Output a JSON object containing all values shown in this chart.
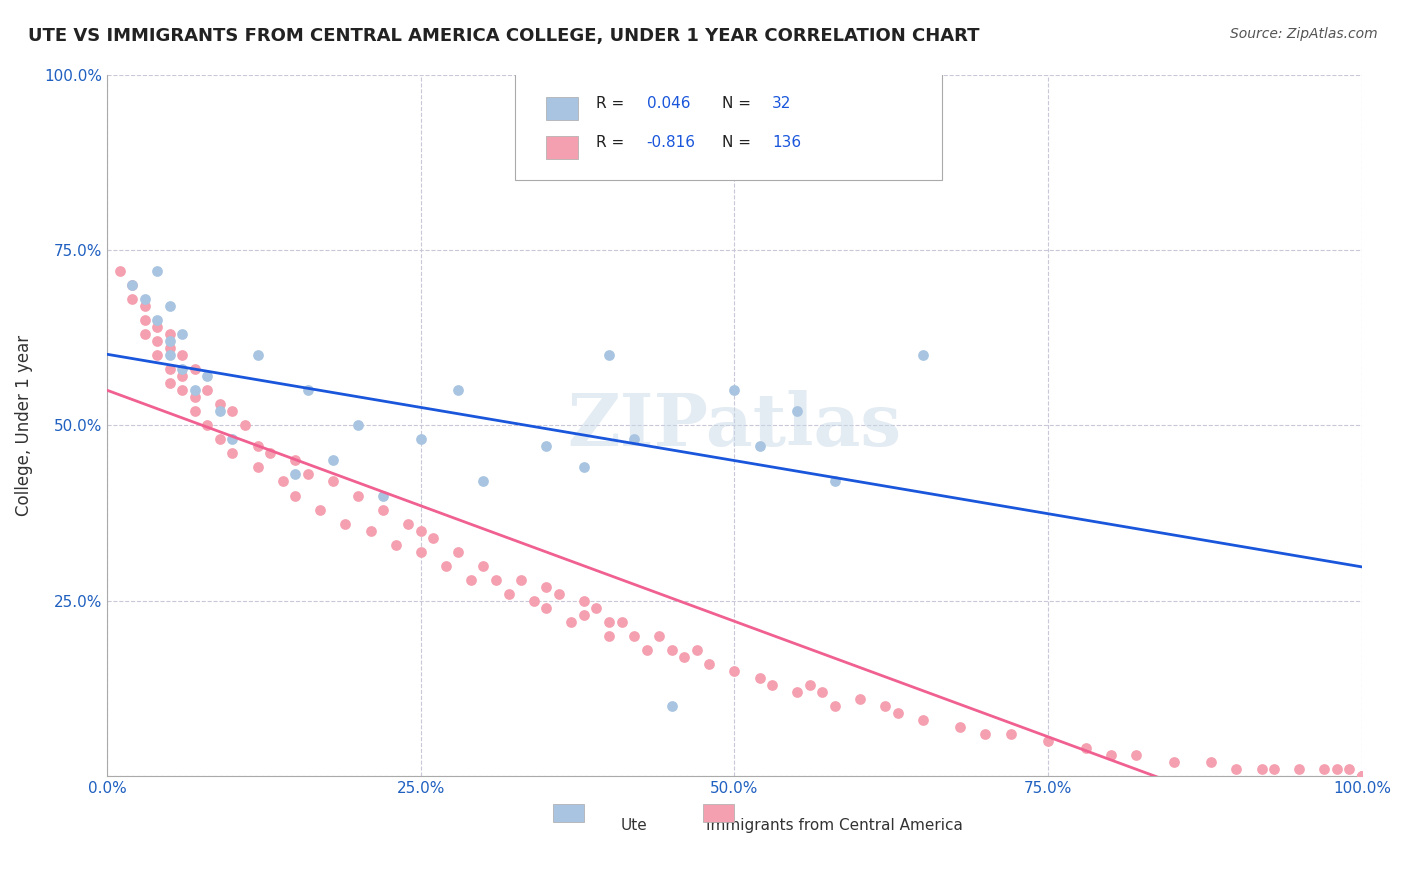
{
  "title": "UTE VS IMMIGRANTS FROM CENTRAL AMERICA COLLEGE, UNDER 1 YEAR CORRELATION CHART",
  "source": "Source: ZipAtlas.com",
  "xlabel": "",
  "ylabel": "College, Under 1 year",
  "legend_labels": [
    "Ute",
    "Immigrants from Central America"
  ],
  "R_ute": 0.046,
  "N_ute": 32,
  "R_imm": -0.816,
  "N_imm": 136,
  "xlim": [
    0.0,
    1.0
  ],
  "ylim": [
    0.0,
    1.0
  ],
  "xticks": [
    0.0,
    0.25,
    0.5,
    0.75,
    1.0
  ],
  "yticks": [
    0.0,
    0.25,
    0.5,
    0.75,
    1.0
  ],
  "xticklabels": [
    "0.0%",
    "25.0%",
    "50.0%",
    "75.0%",
    "100.0%"
  ],
  "yticklabels": [
    "",
    "25.0%",
    "50.0%",
    "75.0%",
    "100.0%"
  ],
  "color_ute": "#a8c4e0",
  "color_imm": "#f4a0b0",
  "line_color_ute": "#1a56db",
  "line_color_imm": "#f06090",
  "background_color": "#ffffff",
  "grid_color": "#c8c8d8",
  "watermark": "ZIPatlas",
  "ute_scatter_x": [
    0.02,
    0.03,
    0.04,
    0.04,
    0.05,
    0.05,
    0.05,
    0.06,
    0.06,
    0.07,
    0.08,
    0.09,
    0.1,
    0.12,
    0.15,
    0.16,
    0.18,
    0.2,
    0.22,
    0.25,
    0.28,
    0.3,
    0.35,
    0.38,
    0.4,
    0.42,
    0.45,
    0.5,
    0.52,
    0.55,
    0.58,
    0.65
  ],
  "ute_scatter_y": [
    0.7,
    0.68,
    0.72,
    0.65,
    0.62,
    0.67,
    0.6,
    0.58,
    0.63,
    0.55,
    0.57,
    0.52,
    0.48,
    0.6,
    0.43,
    0.55,
    0.45,
    0.5,
    0.4,
    0.48,
    0.55,
    0.42,
    0.47,
    0.44,
    0.6,
    0.48,
    0.1,
    0.55,
    0.47,
    0.52,
    0.42,
    0.6
  ],
  "imm_scatter_x": [
    0.01,
    0.02,
    0.02,
    0.03,
    0.03,
    0.03,
    0.04,
    0.04,
    0.04,
    0.05,
    0.05,
    0.05,
    0.05,
    0.06,
    0.06,
    0.06,
    0.07,
    0.07,
    0.07,
    0.08,
    0.08,
    0.09,
    0.09,
    0.1,
    0.1,
    0.11,
    0.12,
    0.12,
    0.13,
    0.14,
    0.15,
    0.15,
    0.16,
    0.17,
    0.18,
    0.19,
    0.2,
    0.21,
    0.22,
    0.23,
    0.24,
    0.25,
    0.25,
    0.26,
    0.27,
    0.28,
    0.29,
    0.3,
    0.31,
    0.32,
    0.33,
    0.34,
    0.35,
    0.35,
    0.36,
    0.37,
    0.38,
    0.38,
    0.39,
    0.4,
    0.4,
    0.41,
    0.42,
    0.43,
    0.44,
    0.45,
    0.46,
    0.47,
    0.48,
    0.5,
    0.52,
    0.53,
    0.55,
    0.56,
    0.57,
    0.58,
    0.6,
    0.62,
    0.63,
    0.65,
    0.68,
    0.7,
    0.72,
    0.75,
    0.78,
    0.8,
    0.82,
    0.85,
    0.88,
    0.9,
    0.92,
    0.93,
    0.95,
    0.97,
    0.98,
    0.99,
    1.0,
    1.0,
    1.0,
    1.0
  ],
  "imm_scatter_y": [
    0.72,
    0.68,
    0.7,
    0.65,
    0.67,
    0.63,
    0.62,
    0.64,
    0.6,
    0.58,
    0.61,
    0.63,
    0.56,
    0.6,
    0.57,
    0.55,
    0.58,
    0.54,
    0.52,
    0.55,
    0.5,
    0.53,
    0.48,
    0.52,
    0.46,
    0.5,
    0.47,
    0.44,
    0.46,
    0.42,
    0.45,
    0.4,
    0.43,
    0.38,
    0.42,
    0.36,
    0.4,
    0.35,
    0.38,
    0.33,
    0.36,
    0.35,
    0.32,
    0.34,
    0.3,
    0.32,
    0.28,
    0.3,
    0.28,
    0.26,
    0.28,
    0.25,
    0.27,
    0.24,
    0.26,
    0.22,
    0.25,
    0.23,
    0.24,
    0.22,
    0.2,
    0.22,
    0.2,
    0.18,
    0.2,
    0.18,
    0.17,
    0.18,
    0.16,
    0.15,
    0.14,
    0.13,
    0.12,
    0.13,
    0.12,
    0.1,
    0.11,
    0.1,
    0.09,
    0.08,
    0.07,
    0.06,
    0.06,
    0.05,
    0.04,
    0.03,
    0.03,
    0.02,
    0.02,
    0.01,
    0.01,
    0.01,
    0.01,
    0.01,
    0.01,
    0.01,
    0.0,
    0.0,
    0.0,
    0.0
  ]
}
